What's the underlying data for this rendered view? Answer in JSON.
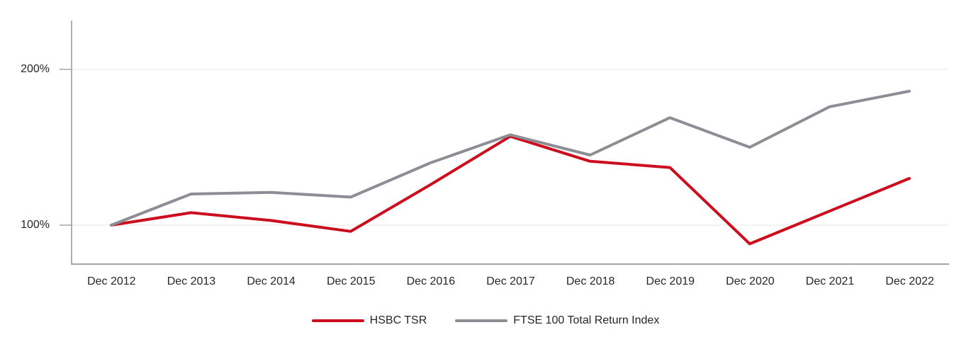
{
  "chart_data": {
    "type": "line",
    "title": "",
    "xlabel": "",
    "ylabel": "",
    "grid": true,
    "legend_position": "bottom",
    "ylim_percent": [
      75,
      230
    ],
    "categories": [
      "Dec 2012",
      "Dec 2013",
      "Dec 2014",
      "Dec 2015",
      "Dec 2016",
      "Dec 2017",
      "Dec 2018",
      "Dec 2019",
      "Dec 2020",
      "Dec 2021",
      "Dec 2022"
    ],
    "yticks": [
      {
        "value": 100,
        "label": "100%"
      },
      {
        "value": 200,
        "label": "200%"
      }
    ],
    "series": [
      {
        "id": "line-hsbc",
        "name": "HSBC TSR",
        "color": "#CC0D1D",
        "values": [
          100,
          108,
          103,
          96,
          126,
          157,
          141,
          137,
          88,
          109,
          130
        ]
      },
      {
        "id": "line-ftse",
        "name": "FTSE 100 Total Return Index",
        "color": "#8D8D95",
        "values": [
          100,
          120,
          121,
          118,
          140,
          158,
          145,
          169,
          150,
          176,
          186
        ]
      }
    ],
    "colors": {
      "axis": "#A6A6A6",
      "gridline": "#E9E9E9",
      "text": "#262626"
    }
  }
}
